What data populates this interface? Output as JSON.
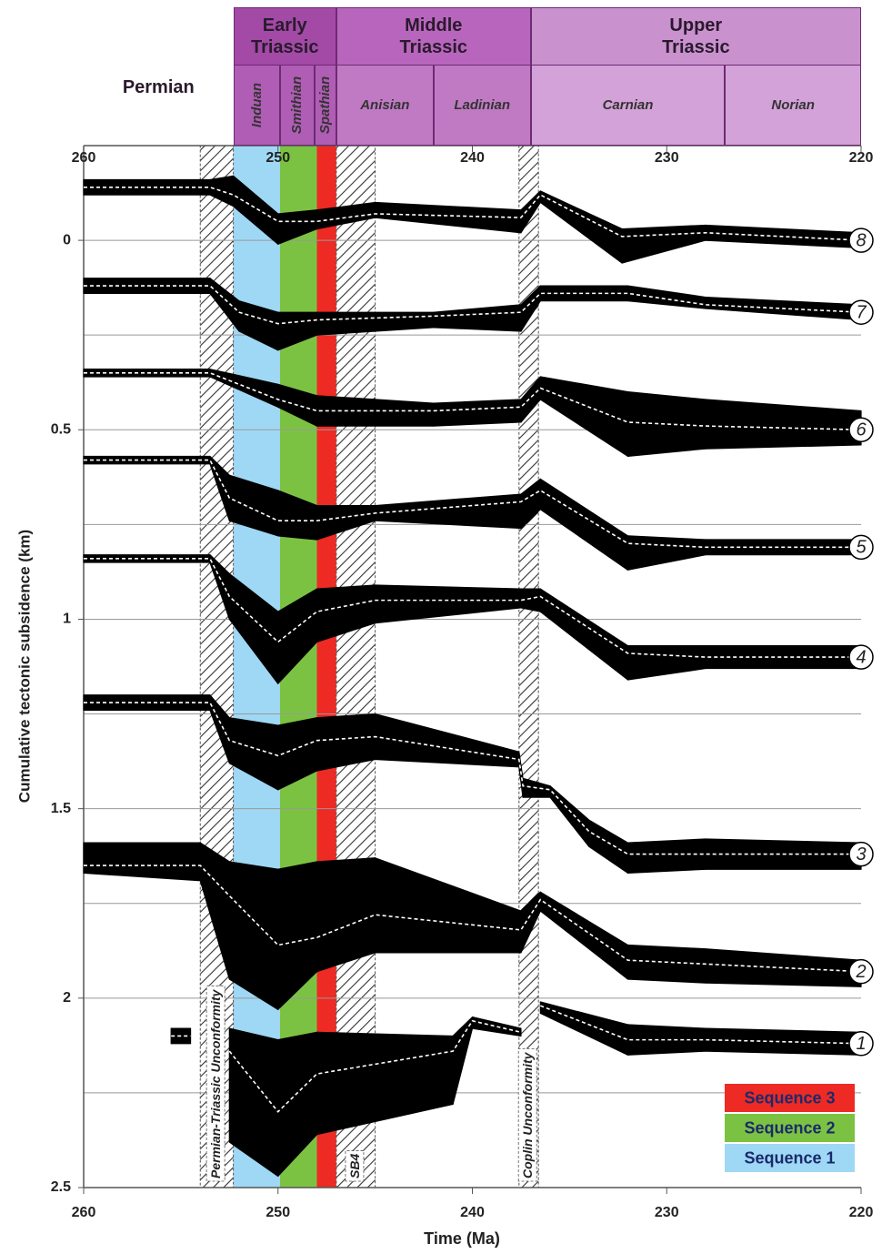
{
  "chart_data": {
    "type": "subsidence",
    "x_label": "Time (Ma)",
    "y_label": "Cumulative tectonic subsidence (km)",
    "xlim": [
      260,
      220
    ],
    "ylim": [
      -0.25,
      2.5
    ],
    "xticks": [
      260,
      250,
      240,
      230,
      220
    ],
    "yticks": [
      0,
      0.5,
      1,
      1.5,
      2,
      2.5
    ],
    "ygrid": [
      0,
      0.25,
      0.5,
      0.75,
      1,
      1.25,
      1.5,
      1.75,
      2,
      2.25
    ],
    "y_inverted": true,
    "legend": "lower right",
    "timescale": {
      "periods": [
        {
          "label": "Permian",
          "range": [
            260,
            252.3
          ],
          "color": null
        },
        {
          "label": "Early Triassic",
          "range": [
            252.3,
            247
          ],
          "color": "#a24aa6"
        },
        {
          "label": "Middle Triassic",
          "range": [
            247,
            237
          ],
          "color": "#b866bd"
        },
        {
          "label": "Upper Triassic",
          "range": [
            237,
            220
          ],
          "color": "#c992cf"
        }
      ],
      "stages": [
        {
          "label": "Induan",
          "range": [
            252.3,
            249.9
          ],
          "color": "#b05db5"
        },
        {
          "label": "Smithian",
          "range": [
            249.9,
            248.1
          ],
          "color": "#b05db5"
        },
        {
          "label": "Spathian",
          "range": [
            248.1,
            247
          ],
          "color": "#b05db5"
        },
        {
          "label": "Anisian",
          "range": [
            247,
            242
          ],
          "color": "#c07ac4"
        },
        {
          "label": "Ladinian",
          "range": [
            242,
            237
          ],
          "color": "#c07ac4"
        },
        {
          "label": "Carnian",
          "range": [
            237,
            227
          ],
          "color": "#d3a2d8"
        },
        {
          "label": "Norian",
          "range": [
            227,
            220
          ],
          "color": "#d3a2d8"
        }
      ]
    },
    "bands": [
      {
        "name": "Sequence 1",
        "range": [
          252.3,
          249.9
        ],
        "color": "#9fd8f5"
      },
      {
        "name": "Sequence 2",
        "range": [
          249.9,
          248
        ],
        "color": "#7cc242"
      },
      {
        "name": "Sequence 3",
        "range": [
          248,
          247
        ],
        "color": "#ee2a24"
      }
    ],
    "unconformities": [
      {
        "label": "Permian-Triassic Unconformity",
        "range": [
          254,
          252.3
        ]
      },
      {
        "label": "SB4",
        "range": [
          247,
          245
        ]
      },
      {
        "label": "Coplin Unconformity",
        "range": [
          237.6,
          236.6
        ]
      }
    ],
    "series": [
      {
        "name": "1",
        "color": "#000000",
        "line_color": "#ffffff",
        "x": [
          255.5,
          254.5,
          253.5,
          252.5,
          250,
          248,
          241,
          240,
          237.5,
          237,
          236.5,
          232,
          228,
          220
        ],
        "values": [
          2.1,
          2.1,
          null,
          2.14,
          2.3,
          2.2,
          2.14,
          2.06,
          2.09,
          null,
          2.02,
          2.11,
          2.11,
          2.12
        ],
        "low": [
          2.08,
          2.08,
          null,
          2.08,
          2.11,
          2.09,
          2.1,
          2.05,
          2.08,
          null,
          2.01,
          2.07,
          2.08,
          2.09
        ],
        "high": [
          2.12,
          2.12,
          null,
          2.38,
          2.47,
          2.36,
          2.28,
          2.08,
          2.1,
          null,
          2.04,
          2.15,
          2.14,
          2.15
        ]
      },
      {
        "name": "2",
        "color": "#000000",
        "line_color": "#ffffff",
        "x": [
          260,
          254,
          252.5,
          250,
          248,
          245,
          237.5,
          236.5,
          232,
          228,
          220
        ],
        "values": [
          1.65,
          1.65,
          1.73,
          1.86,
          1.84,
          1.78,
          1.82,
          1.74,
          1.9,
          1.91,
          1.93
        ],
        "low": [
          1.59,
          1.59,
          1.64,
          1.66,
          1.64,
          1.63,
          1.77,
          1.72,
          1.86,
          1.87,
          1.9
        ],
        "high": [
          1.67,
          1.69,
          1.95,
          2.03,
          1.93,
          1.88,
          1.88,
          1.77,
          1.95,
          1.96,
          1.97
        ]
      },
      {
        "name": "3",
        "color": "#000000",
        "line_color": "#ffffff",
        "x": [
          260,
          253.5,
          252.5,
          250,
          248,
          245,
          237.6,
          237.4,
          236,
          234,
          232,
          228,
          220
        ],
        "values": [
          1.22,
          1.22,
          1.32,
          1.36,
          1.32,
          1.31,
          1.37,
          1.44,
          1.45,
          1.56,
          1.62,
          1.62,
          1.62
        ],
        "low": [
          1.2,
          1.2,
          1.26,
          1.28,
          1.26,
          1.25,
          1.35,
          1.42,
          1.44,
          1.53,
          1.59,
          1.58,
          1.59
        ],
        "high": [
          1.24,
          1.24,
          1.38,
          1.45,
          1.4,
          1.37,
          1.39,
          1.47,
          1.47,
          1.6,
          1.67,
          1.66,
          1.66
        ]
      },
      {
        "name": "4",
        "color": "#000000",
        "line_color": "#ffffff",
        "x": [
          260,
          253.5,
          252.5,
          250,
          248,
          245,
          237.5,
          236.5,
          232,
          228,
          220
        ],
        "values": [
          0.84,
          0.84,
          0.94,
          1.06,
          0.98,
          0.95,
          0.95,
          0.94,
          1.09,
          1.1,
          1.1
        ],
        "low": [
          0.83,
          0.83,
          0.88,
          0.98,
          0.92,
          0.91,
          0.92,
          0.92,
          1.07,
          1.07,
          1.07
        ],
        "high": [
          0.85,
          0.85,
          1.0,
          1.17,
          1.06,
          1.01,
          0.97,
          0.98,
          1.16,
          1.13,
          1.13
        ]
      },
      {
        "name": "5",
        "color": "#000000",
        "line_color": "#ffffff",
        "x": [
          260,
          253.5,
          252.5,
          250,
          248,
          245,
          237.5,
          236.5,
          232,
          228,
          220
        ],
        "values": [
          0.58,
          0.58,
          0.68,
          0.74,
          0.74,
          0.72,
          0.69,
          0.66,
          0.8,
          0.81,
          0.81
        ],
        "low": [
          0.57,
          0.57,
          0.62,
          0.66,
          0.7,
          0.7,
          0.67,
          0.63,
          0.78,
          0.79,
          0.79
        ],
        "high": [
          0.59,
          0.59,
          0.74,
          0.78,
          0.79,
          0.74,
          0.76,
          0.71,
          0.87,
          0.83,
          0.83
        ]
      },
      {
        "name": "6",
        "color": "#000000",
        "line_color": "#ffffff",
        "x": [
          260,
          253.5,
          250,
          248,
          242,
          237.5,
          236.5,
          232,
          228,
          220
        ],
        "values": [
          0.35,
          0.35,
          0.42,
          0.45,
          0.45,
          0.44,
          0.39,
          0.48,
          0.49,
          0.5
        ],
        "low": [
          0.34,
          0.34,
          0.38,
          0.41,
          0.43,
          0.42,
          0.36,
          0.4,
          0.42,
          0.45
        ],
        "high": [
          0.36,
          0.36,
          0.44,
          0.49,
          0.49,
          0.48,
          0.42,
          0.57,
          0.55,
          0.54
        ]
      },
      {
        "name": "7",
        "color": "#000000",
        "line_color": "#ffffff",
        "x": [
          260,
          253.5,
          252,
          250,
          248,
          242,
          237.5,
          236.5,
          232,
          228,
          220
        ],
        "values": [
          0.12,
          0.12,
          0.19,
          0.22,
          0.21,
          0.2,
          0.19,
          0.14,
          0.14,
          0.17,
          0.19
        ],
        "low": [
          0.1,
          0.1,
          0.16,
          0.19,
          0.19,
          0.19,
          0.17,
          0.12,
          0.12,
          0.15,
          0.17
        ],
        "high": [
          0.14,
          0.14,
          0.24,
          0.29,
          0.25,
          0.23,
          0.24,
          0.16,
          0.16,
          0.18,
          0.21
        ]
      },
      {
        "name": "8",
        "color": "#000000",
        "line_color": "#ffffff",
        "x": [
          260,
          253.5,
          252.3,
          250,
          248,
          245,
          237.5,
          236.5,
          232.3,
          228,
          220
        ],
        "values": [
          -0.14,
          -0.14,
          -0.12,
          -0.05,
          -0.05,
          -0.07,
          -0.06,
          -0.12,
          -0.01,
          -0.02,
          0
        ],
        "low": [
          -0.16,
          -0.16,
          -0.17,
          -0.07,
          -0.08,
          -0.1,
          -0.08,
          -0.13,
          -0.03,
          -0.04,
          -0.02
        ],
        "high": [
          -0.12,
          -0.12,
          -0.09,
          0.01,
          -0.03,
          -0.06,
          -0.02,
          -0.1,
          0.06,
          0,
          0.02
        ]
      }
    ]
  }
}
